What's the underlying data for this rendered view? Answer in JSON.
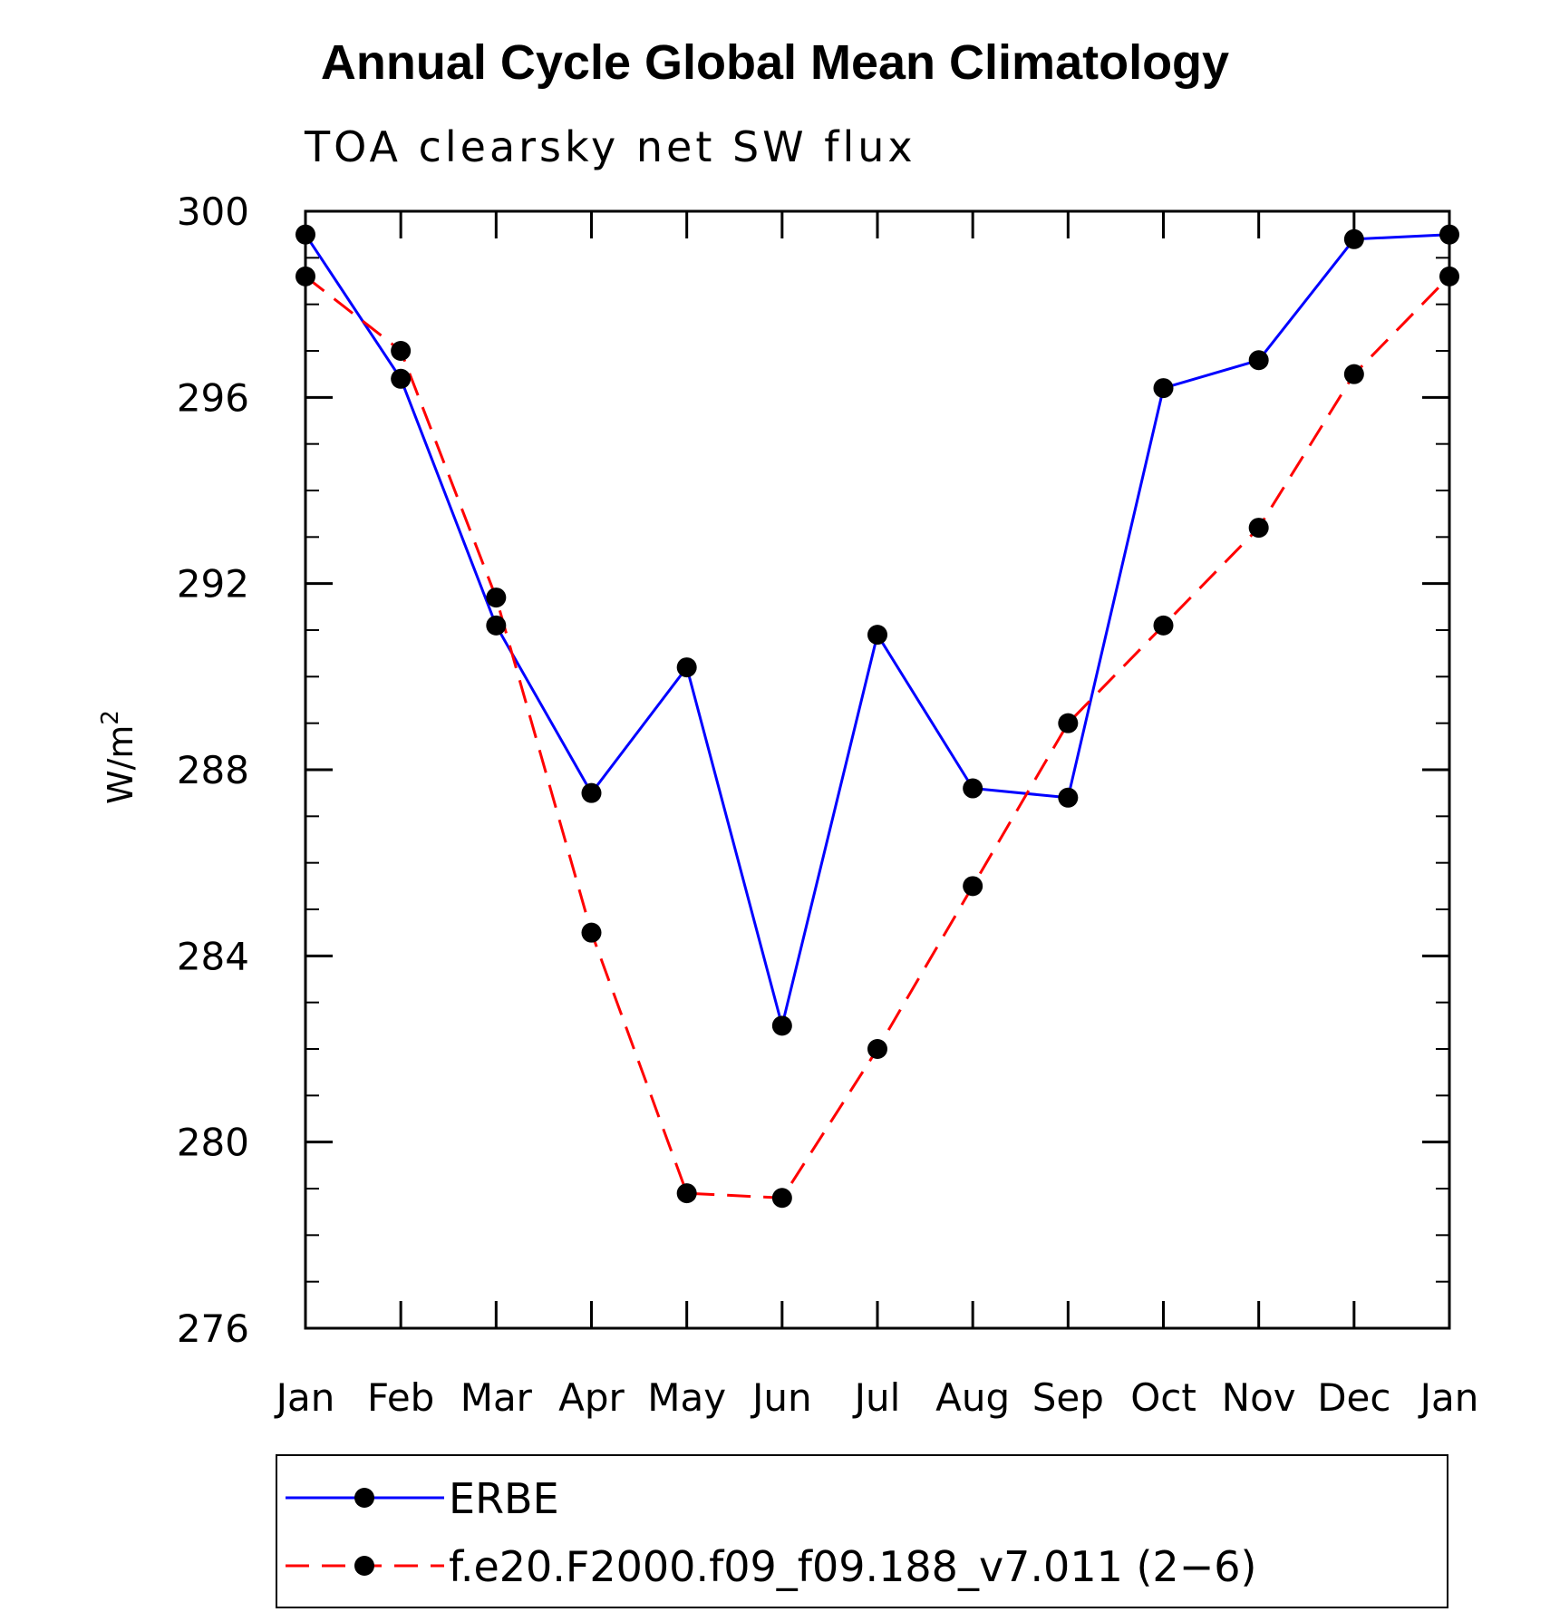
{
  "chart_data": {
    "type": "line",
    "title": "Annual Cycle Global Mean Climatology",
    "subtitle": "TOA clearsky net SW flux",
    "ylabel": "W/m",
    "ylabel_superscript": "2",
    "categories": [
      "Jan",
      "Feb",
      "Mar",
      "Apr",
      "May",
      "Jun",
      "Jul",
      "Aug",
      "Sep",
      "Oct",
      "Nov",
      "Dec",
      "Jan"
    ],
    "ylim": [
      276,
      300
    ],
    "yticks": [
      276,
      280,
      284,
      288,
      292,
      296,
      300
    ],
    "series": [
      {
        "name": "ERBE",
        "color": "#0000ff",
        "dash": "solid",
        "values": [
          299.5,
          296.4,
          291.1,
          287.5,
          290.2,
          282.5,
          290.9,
          287.6,
          287.4,
          296.2,
          296.8,
          299.4,
          299.5
        ]
      },
      {
        "name": "f.e20.F2000.f09_f09.188_v7.011 (2−6)",
        "color": "#ff0000",
        "dash": "dashed",
        "values": [
          298.6,
          297.0,
          291.7,
          284.5,
          278.9,
          278.8,
          282.0,
          285.5,
          289.0,
          291.1,
          293.2,
          296.5,
          298.6
        ]
      }
    ],
    "marker": "filled-circle",
    "legend_position": "bottom"
  }
}
